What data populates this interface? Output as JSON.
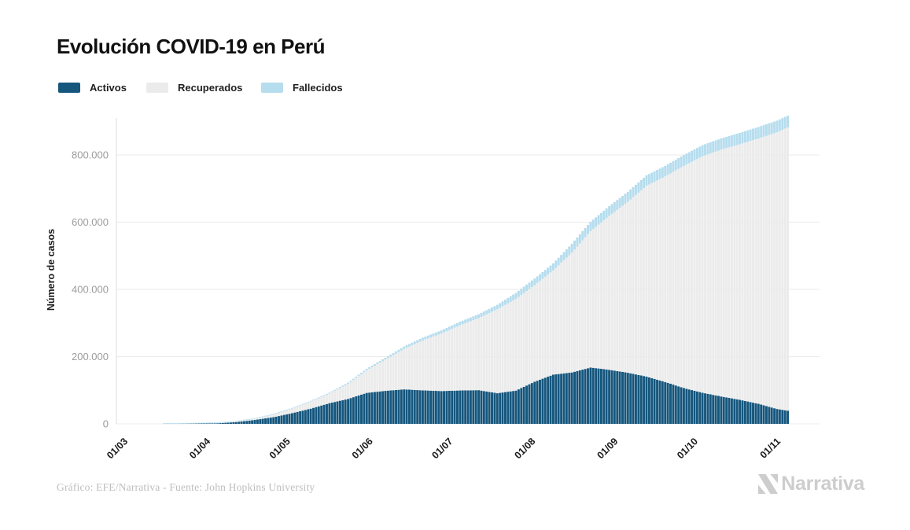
{
  "title": "Evolución COVID-19 en Perú",
  "legend": [
    {
      "label": "Activos",
      "color": "#15567d"
    },
    {
      "label": "Recuperados",
      "color": "#ebebeb"
    },
    {
      "label": "Fallecidos",
      "color": "#b5ddee"
    }
  ],
  "chart_data": {
    "type": "bar",
    "subtype": "stacked-daily-bars",
    "title": "Evolución COVID-19 en Perú",
    "xlabel": "",
    "ylabel": "Número de casos",
    "x_tick_labels": [
      "01/03",
      "01/04",
      "01/05",
      "01/06",
      "01/07",
      "01/08",
      "01/09",
      "01/10",
      "01/11"
    ],
    "x_tick_day_offsets": [
      0,
      31,
      61,
      92,
      122,
      153,
      184,
      214,
      245
    ],
    "y_ticks": [
      {
        "label": "0",
        "value": 0
      },
      {
        "label": "200.000",
        "value": 200000
      },
      {
        "label": "400.000",
        "value": 400000
      },
      {
        "label": "600.000",
        "value": 600000
      },
      {
        "label": "800.000",
        "value": 800000
      }
    ],
    "ylim": [
      0,
      935000
    ],
    "grid": "horizontal",
    "legend_position": "top-left",
    "x_start_date": "01/03",
    "x_end_day_offset": 249,
    "sample_day_offsets": [
      0,
      7,
      14,
      21,
      28,
      35,
      42,
      49,
      56,
      63,
      70,
      77,
      84,
      91,
      98,
      105,
      112,
      119,
      126,
      133,
      140,
      147,
      154,
      161,
      168,
      175,
      182,
      189,
      196,
      203,
      210,
      217,
      224,
      231,
      238,
      245,
      249
    ],
    "series": [
      {
        "name": "Activos",
        "color": "#15567d",
        "values": [
          0,
          6,
          43,
          363,
          964,
          1720,
          5256,
          11631,
          19799,
          31763,
          45198,
          61461,
          74115,
          92150,
          98107,
          102620,
          99651,
          97535,
          99270,
          100298,
          91070,
          98940,
          125205,
          146353,
          152852,
          167568,
          160865,
          151910,
          140636,
          124540,
          106420,
          92526,
          81492,
          71551,
          59591,
          44202,
          39237
        ]
      },
      {
        "name": "Recuperados",
        "color": "#ebebeb",
        "values": [
          0,
          0,
          0,
          1,
          53,
          914,
          1438,
          3108,
          7797,
          13550,
          21349,
          28621,
          44848,
          67208,
          92929,
          120246,
          148437,
          171159,
          193957,
          214152,
          249795,
          272547,
          287566,
          310337,
          356429,
          405738,
          457597,
          508606,
          567599,
          611543,
          661078,
          703324,
          734122,
          760160,
          789271,
          823152,
          842613
        ]
      },
      {
        "name": "Fallecidos",
        "color": "#b5ddee",
        "values": [
          0,
          0,
          0,
          5,
          30,
          73,
          193,
          445,
          728,
          1286,
          1889,
          2648,
          3629,
          4506,
          5465,
          7056,
          8223,
          9317,
          10412,
          11870,
          13187,
          18229,
          19614,
          20649,
          26481,
          27813,
          28944,
          29976,
          30927,
          31568,
          32142,
          33158,
          33419,
          33875,
          34257,
          34625,
          34943
        ]
      }
    ],
    "colors": {
      "gridline": "#ebebeb",
      "axis_line": "#dcdcdc",
      "x_tick_text": "#1a1a1a",
      "y_tick_text": "#9c9c9c",
      "y_axis_title_text": "#1a1a1a"
    }
  },
  "footer": {
    "credit": "Gráfico: EFE/Narrativa - Fuente: John Hopkins University",
    "brand_name": "Narrativa",
    "brand_color": "#cdcdcd"
  }
}
